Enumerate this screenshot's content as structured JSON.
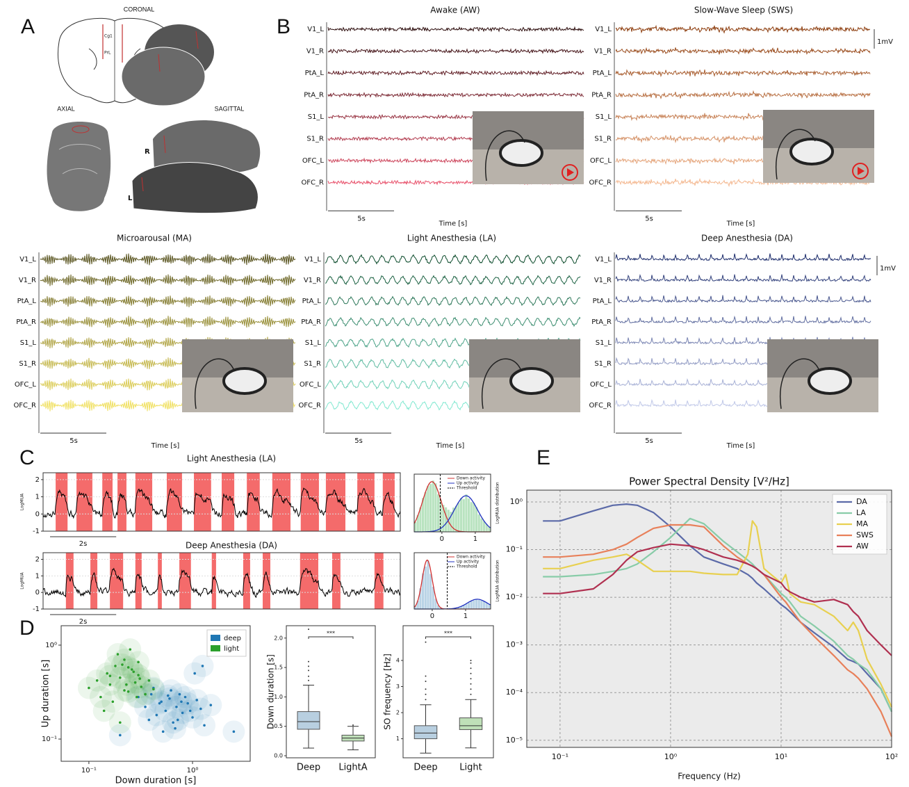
{
  "figure": {
    "panel_labels": [
      "A",
      "B",
      "C",
      "D",
      "E"
    ]
  },
  "anatomy": {
    "coronal": "CORONAL",
    "axial": "AXIAL",
    "sagittal": "SAGITTAL",
    "cg1": "Cg1",
    "prl": "PrL",
    "r": "R",
    "l": "L"
  },
  "traces": {
    "channels": [
      "V1_L",
      "V1_R",
      "PtA_L",
      "PtA_R",
      "S1_L",
      "S1_R",
      "OFC_L",
      "OFC_R"
    ],
    "time_scale": "5s",
    "time_label": "Time [s]",
    "volt_scale": "1mV",
    "panels": [
      {
        "title": "Awake (AW)",
        "colors": [
          "#2a0a0a",
          "#e8506a"
        ]
      },
      {
        "title": "Slow-Wave Sleep (SWS)",
        "colors": [
          "#8b3a0a",
          "#f4b890"
        ]
      },
      {
        "title": "Microarousal (MA)",
        "colors": [
          "#5a5520",
          "#f0e060"
        ]
      },
      {
        "title": "Light Anesthesia (LA)",
        "colors": [
          "#0a4a2a",
          "#80e8d0"
        ]
      },
      {
        "title": "Deep Anesthesia (DA)",
        "colors": [
          "#1a2a6a",
          "#c0c8e8"
        ]
      }
    ]
  },
  "chart_data": [
    {
      "type": "mua",
      "title": "Light Anesthesia (LA)",
      "ylabel": "LogMUA",
      "scale": {
        "value": 2,
        "label": "2s"
      },
      "xlim": [
        0,
        10.8
      ],
      "ylim": [
        -1,
        2.4
      ],
      "yticks": [
        -1,
        0,
        1,
        2
      ],
      "grid": true,
      "color": "#000000",
      "band_color": "#f46b6b",
      "up_states": [
        [
          0.38,
          0.74
        ],
        [
          1.01,
          1.49
        ],
        [
          1.79,
          2.1
        ],
        [
          2.25,
          2.52
        ],
        [
          2.79,
          3.3
        ],
        [
          3.74,
          4.2
        ],
        [
          4.56,
          5.08
        ],
        [
          5.4,
          5.78
        ],
        [
          6.16,
          6.55
        ],
        [
          6.93,
          7.48
        ],
        [
          7.79,
          8.34
        ],
        [
          8.55,
          9.14
        ],
        [
          9.5,
          10.02
        ],
        [
          10.27,
          10.63
        ]
      ]
    },
    {
      "type": "mua",
      "title": "Deep Anesthesia (DA)",
      "ylabel": "LogMUA",
      "scale": {
        "value": 2,
        "label": "2s"
      },
      "xlim": [
        0,
        10.8
      ],
      "ylim": [
        -1,
        2.4
      ],
      "yticks": [
        -1,
        0,
        1,
        2
      ],
      "grid": true,
      "color": "#000000",
      "band_color": "#f46b6b",
      "up_states": [
        [
          0.69,
          0.92
        ],
        [
          1.43,
          1.64
        ],
        [
          2.02,
          2.42
        ],
        [
          2.79,
          2.98
        ],
        [
          3.47,
          3.59
        ],
        [
          4.12,
          4.47
        ],
        [
          5.1,
          5.23
        ],
        [
          6.05,
          6.26
        ],
        [
          6.64,
          6.87
        ],
        [
          7.77,
          8.32
        ],
        [
          8.74,
          8.99
        ],
        [
          10.02,
          10.29
        ]
      ]
    },
    {
      "type": "density",
      "ylabel": "LogMUA distribution",
      "xlim": [
        -0.83,
        1.46
      ],
      "xticks": [
        0,
        1
      ],
      "threshold": -0.05,
      "threshold_name": "Threshold",
      "fill": "#a8dcb0",
      "components": [
        {
          "name": "Down activity",
          "color": "#d03030",
          "mean": -0.3,
          "sd": 0.28,
          "peak": 1
        },
        {
          "name": "Up activity",
          "color": "#2030c0",
          "mean": 0.72,
          "sd": 0.35,
          "peak": 0.72
        }
      ]
    },
    {
      "type": "density",
      "ylabel": "LogMUA distribution",
      "xlim": [
        -0.54,
        1.75
      ],
      "xticks": [
        0,
        1
      ],
      "threshold": 0.45,
      "threshold_name": "Threshold",
      "fill": "#a8c8e0",
      "components": [
        {
          "name": "Down activity",
          "color": "#d03030",
          "mean": -0.15,
          "sd": 0.15,
          "peak": 1
        },
        {
          "name": "Up activity",
          "color": "#2030c0",
          "mean": 1.35,
          "sd": 0.3,
          "peak": 0.2
        }
      ]
    },
    {
      "type": "scatter",
      "xlabel": "Down duration [s]",
      "ylabel": "Up duration [s]",
      "log_scale": true,
      "legend": "upper right",
      "xlim": [
        0.054,
        3.6
      ],
      "ylim": [
        0.058,
        1.61
      ],
      "xticks": [
        {
          "value": 0.1,
          "label": "10⁻¹"
        },
        {
          "value": 1,
          "label": "10⁰"
        }
      ],
      "yticks": [
        {
          "value": 0.1,
          "label": "10⁻¹"
        },
        {
          "value": 1,
          "label": "10⁰"
        }
      ],
      "series": [
        {
          "name": "deep",
          "color": "#1f77b4",
          "x": [
            0.3,
            0.35,
            0.4,
            0.45,
            0.5,
            0.55,
            0.6,
            0.65,
            0.7,
            0.75,
            0.8,
            0.9,
            1.0,
            1.1,
            1.2,
            1.3,
            1.5,
            0.42,
            0.52,
            0.62,
            0.72,
            0.85,
            0.95,
            0.48,
            0.58,
            0.68,
            0.78,
            1.05,
            2.5,
            1.25,
            0.38,
            0.2
          ],
          "y": [
            0.28,
            0.22,
            0.3,
            0.18,
            0.25,
            0.2,
            0.27,
            0.15,
            0.22,
            0.3,
            0.19,
            0.24,
            0.17,
            0.26,
            0.21,
            0.14,
            0.23,
            0.35,
            0.12,
            0.33,
            0.16,
            0.28,
            0.2,
            0.24,
            0.29,
            0.13,
            0.25,
            0.5,
            0.12,
            0.6,
            0.16,
            0.11
          ]
        },
        {
          "name": "light",
          "color": "#2ca02c",
          "x": [
            0.1,
            0.12,
            0.13,
            0.15,
            0.16,
            0.18,
            0.2,
            0.22,
            0.24,
            0.26,
            0.28,
            0.3,
            0.32,
            0.35,
            0.38,
            0.42,
            0.17,
            0.19,
            0.21,
            0.23,
            0.25,
            0.27,
            0.29,
            0.31,
            0.14,
            0.2,
            0.24,
            0.3,
            0.16,
            0.22
          ],
          "y": [
            0.35,
            0.42,
            0.28,
            0.5,
            0.38,
            0.6,
            0.45,
            0.7,
            0.32,
            0.55,
            0.4,
            0.48,
            0.36,
            0.3,
            0.42,
            0.34,
            0.25,
            0.8,
            0.62,
            0.38,
            0.9,
            0.52,
            0.28,
            0.44,
            0.2,
            0.15,
            0.58,
            0.66,
            0.47,
            0.33
          ]
        }
      ]
    },
    {
      "type": "box",
      "ylabel": "Down duration [s]",
      "categories": [
        "Deep",
        "LightA"
      ],
      "annotation": "***",
      "ylim": [
        -0.035,
        2.21
      ],
      "yticks": [
        {
          "value": 0,
          "label": "0.0"
        },
        {
          "value": 0.5,
          "label": "0.5"
        },
        {
          "value": 1,
          "label": "1.0"
        },
        {
          "value": 1.5,
          "label": "1.5"
        },
        {
          "value": 2,
          "label": "2.0"
        }
      ],
      "colors": [
        "#b8cfe0",
        "#bfe0b8"
      ],
      "boxes": [
        {
          "whislo": 0.13,
          "q1": 0.45,
          "med": 0.58,
          "q3": 0.75,
          "whishi": 1.2,
          "fliers": [
            1.28,
            1.35,
            1.45,
            1.52,
            1.6,
            2.15
          ]
        },
        {
          "whislo": 0.1,
          "q1": 0.25,
          "med": 0.3,
          "q3": 0.35,
          "whishi": 0.5,
          "fliers": [
            0.52
          ]
        }
      ]
    },
    {
      "type": "box",
      "ylabel": "SO frequency [Hz]",
      "categories": [
        "Deep",
        "Light"
      ],
      "annotation": "***",
      "ylim": [
        0.27,
        5.33
      ],
      "yticks": [
        1,
        2,
        3,
        4
      ],
      "colors": [
        "#b8cfe0",
        "#bfe0b8"
      ],
      "boxes": [
        {
          "whislo": 0.45,
          "q1": 1.0,
          "med": 1.22,
          "q3": 1.5,
          "whishi": 2.3,
          "fliers": [
            2.5,
            2.7,
            2.9,
            3.2,
            3.4,
            4.7
          ]
        },
        {
          "whislo": 0.65,
          "q1": 1.35,
          "med": 1.5,
          "q3": 1.8,
          "whishi": 2.5,
          "fliers": [
            2.7,
            2.9,
            3.1,
            3.3,
            3.5,
            3.7,
            3.9,
            4.0
          ]
        }
      ]
    },
    {
      "type": "psd",
      "title": "Power Spectral Density [V²/Hz]",
      "xlabel": "Frequency (Hz)",
      "log_scale": true,
      "grid": true,
      "legend": "upper right",
      "background": "#ebebeb",
      "xlim": [
        0.05,
        100
      ],
      "ylim": [
        7.1e-06,
        1.77
      ],
      "xticks": [
        {
          "value": 0.1,
          "label": "10⁻¹"
        },
        {
          "value": 1,
          "label": "10⁰"
        },
        {
          "value": 10,
          "label": "10¹"
        },
        {
          "value": 100,
          "label": "10²"
        }
      ],
      "yticks": [
        {
          "value": 1e-05,
          "label": "10⁻⁵"
        },
        {
          "value": 0.0001,
          "label": "10⁻⁴"
        },
        {
          "value": 0.001,
          "label": "10⁻³"
        },
        {
          "value": 0.01,
          "label": "10⁻²"
        },
        {
          "value": 0.1,
          "label": "10⁻¹"
        },
        {
          "value": 1,
          "label": "10⁰"
        }
      ],
      "x": [
        0.07,
        0.1,
        0.2,
        0.3,
        0.4,
        0.5,
        0.7,
        1,
        1.5,
        2,
        3,
        4,
        5,
        5.5,
        6,
        7,
        10,
        11,
        12,
        15,
        20,
        30,
        40,
        45,
        50,
        60,
        80,
        100
      ],
      "series": [
        {
          "name": "DA",
          "color": "#5b6aa8",
          "values": [
            0.4,
            0.4,
            0.65,
            0.85,
            0.9,
            0.85,
            0.6,
            0.3,
            0.12,
            0.07,
            0.05,
            0.04,
            0.03,
            0.025,
            0.02,
            0.015,
            0.007,
            0.006,
            0.005,
            0.003,
            0.0018,
            0.0009,
            0.0005,
            0.00045,
            0.0004,
            0.00025,
            0.00012,
            4e-05
          ]
        },
        {
          "name": "LA",
          "color": "#88cca8",
          "values": [
            0.027,
            0.027,
            0.03,
            0.035,
            0.04,
            0.05,
            0.09,
            0.18,
            0.45,
            0.35,
            0.15,
            0.09,
            0.06,
            0.05,
            0.04,
            0.03,
            0.012,
            0.01,
            0.008,
            0.004,
            0.0025,
            0.0012,
            0.0006,
            0.0005,
            0.0004,
            0.0003,
            0.00012,
            4e-05
          ]
        },
        {
          "name": "MA",
          "color": "#e8d050",
          "values": [
            0.04,
            0.04,
            0.06,
            0.07,
            0.08,
            0.06,
            0.035,
            0.035,
            0.035,
            0.032,
            0.03,
            0.03,
            0.08,
            0.4,
            0.3,
            0.04,
            0.02,
            0.03,
            0.012,
            0.008,
            0.007,
            0.004,
            0.002,
            0.003,
            0.002,
            0.0005,
            0.00015,
            5e-05
          ]
        },
        {
          "name": "SWS",
          "color": "#e8805a",
          "values": [
            0.07,
            0.07,
            0.08,
            0.1,
            0.13,
            0.18,
            0.28,
            0.33,
            0.33,
            0.3,
            0.12,
            0.07,
            0.05,
            0.045,
            0.04,
            0.03,
            0.01,
            0.008,
            0.006,
            0.003,
            0.0015,
            0.0006,
            0.0003,
            0.00025,
            0.0002,
            0.00012,
            4e-05,
            1.2e-05
          ]
        },
        {
          "name": "AW",
          "color": "#b03050",
          "values": [
            0.012,
            0.012,
            0.015,
            0.03,
            0.06,
            0.09,
            0.11,
            0.13,
            0.12,
            0.1,
            0.07,
            0.06,
            0.05,
            0.045,
            0.04,
            0.03,
            0.02,
            0.015,
            0.013,
            0.01,
            0.008,
            0.009,
            0.007,
            0.005,
            0.004,
            0.002,
            0.001,
            0.0006
          ]
        }
      ]
    }
  ]
}
